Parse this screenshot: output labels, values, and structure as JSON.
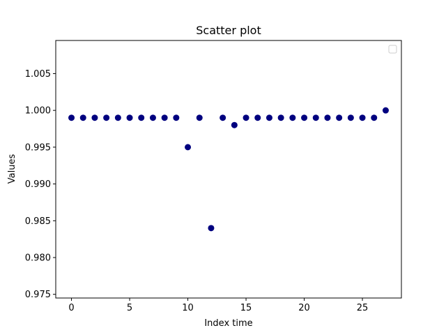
{
  "chart_data": {
    "type": "scatter",
    "title": "Scatter plot",
    "xlabel": "Index time",
    "ylabel": "Values",
    "xlim": [
      -1.35,
      28.35
    ],
    "ylim": [
      0.9745,
      1.0095
    ],
    "xticks": [
      0,
      5,
      10,
      15,
      20,
      25
    ],
    "xtick_labels": [
      "0",
      "5",
      "10",
      "15",
      "20",
      "25"
    ],
    "yticks": [
      0.975,
      0.98,
      0.985,
      0.99,
      0.995,
      1.0,
      1.005
    ],
    "ytick_labels": [
      "0.975",
      "0.980",
      "0.985",
      "0.990",
      "0.995",
      "1.000",
      "1.005"
    ],
    "grid": false,
    "legend": {
      "placement": "upper-right",
      "entries": []
    },
    "series": [
      {
        "color": "#00007f",
        "x": [
          0,
          1,
          2,
          3,
          4,
          5,
          6,
          7,
          8,
          9,
          10,
          11,
          12,
          13,
          14,
          15,
          16,
          17,
          18,
          19,
          20,
          21,
          22,
          23,
          24,
          25,
          26,
          27
        ],
        "y": [
          0.999,
          0.999,
          0.999,
          0.999,
          0.999,
          0.999,
          0.999,
          0.999,
          0.999,
          0.999,
          0.995,
          0.999,
          0.984,
          0.999,
          0.998,
          0.999,
          0.999,
          0.999,
          0.999,
          0.999,
          0.999,
          0.999,
          0.999,
          0.999,
          0.999,
          0.999,
          0.999,
          1.0
        ]
      }
    ]
  }
}
